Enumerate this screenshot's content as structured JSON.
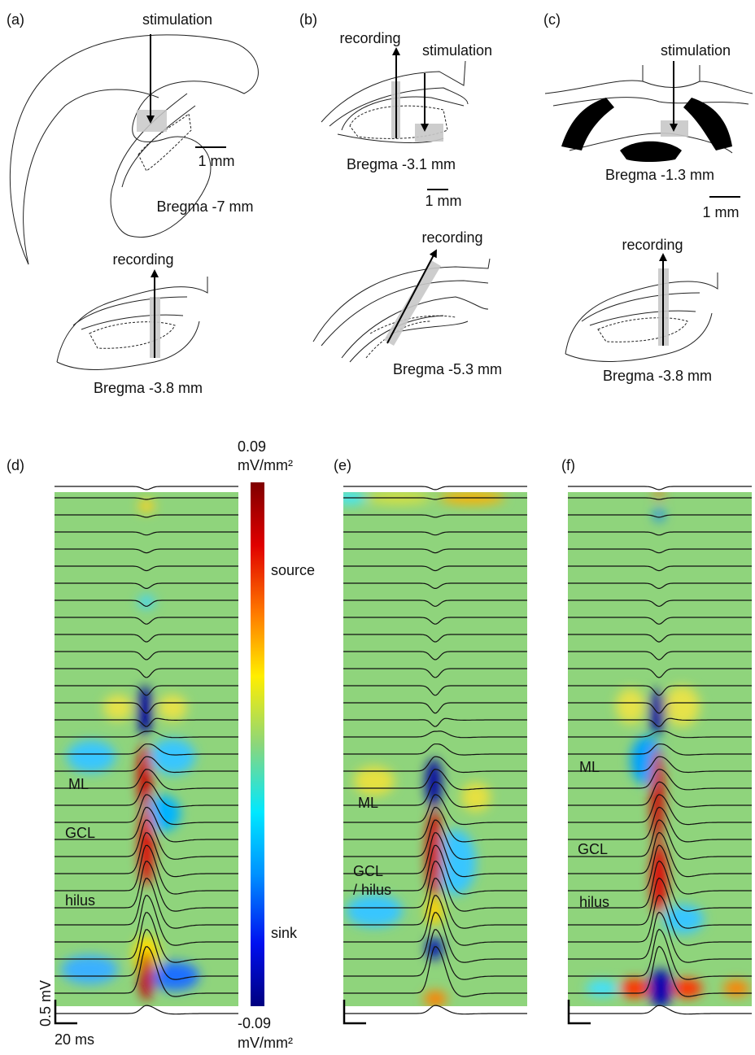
{
  "panels": {
    "a": {
      "label": "(a)",
      "stimulation": "stimulation",
      "scale": "1 mm",
      "bregma_top": "Bregma -7 mm",
      "recording": "recording",
      "bregma_bottom": "Bregma -3.8 mm"
    },
    "b": {
      "label": "(b)",
      "recording_top": "recording",
      "stimulation": "stimulation",
      "bregma_top": "Bregma -3.1 mm",
      "scale": "1 mm",
      "recording_bottom": "recording",
      "bregma_bottom": "Bregma -5.3 mm"
    },
    "c": {
      "label": "(c)",
      "stimulation": "stimulation",
      "bregma_top": "Bregma -1.3 mm",
      "scale": "1 mm",
      "recording": "recording",
      "bregma_bottom": "Bregma -3.8 mm"
    },
    "d": {
      "label": "(d)",
      "layers": [
        "ML",
        "GCL",
        "hilus"
      ],
      "scale_v": "0.5 mV",
      "scale_t": "20 ms"
    },
    "e": {
      "label": "(e)",
      "layers": [
        "ML",
        "GCL",
        "/ hilus"
      ]
    },
    "f": {
      "label": "(f)",
      "layers": [
        "ML",
        "GCL",
        "hilus"
      ]
    }
  },
  "colorbar": {
    "max": "0.09",
    "max_unit": "mV/mm²",
    "source": "source",
    "sink": "sink",
    "min": "-0.09",
    "min_unit": "mV/mm²"
  }
}
